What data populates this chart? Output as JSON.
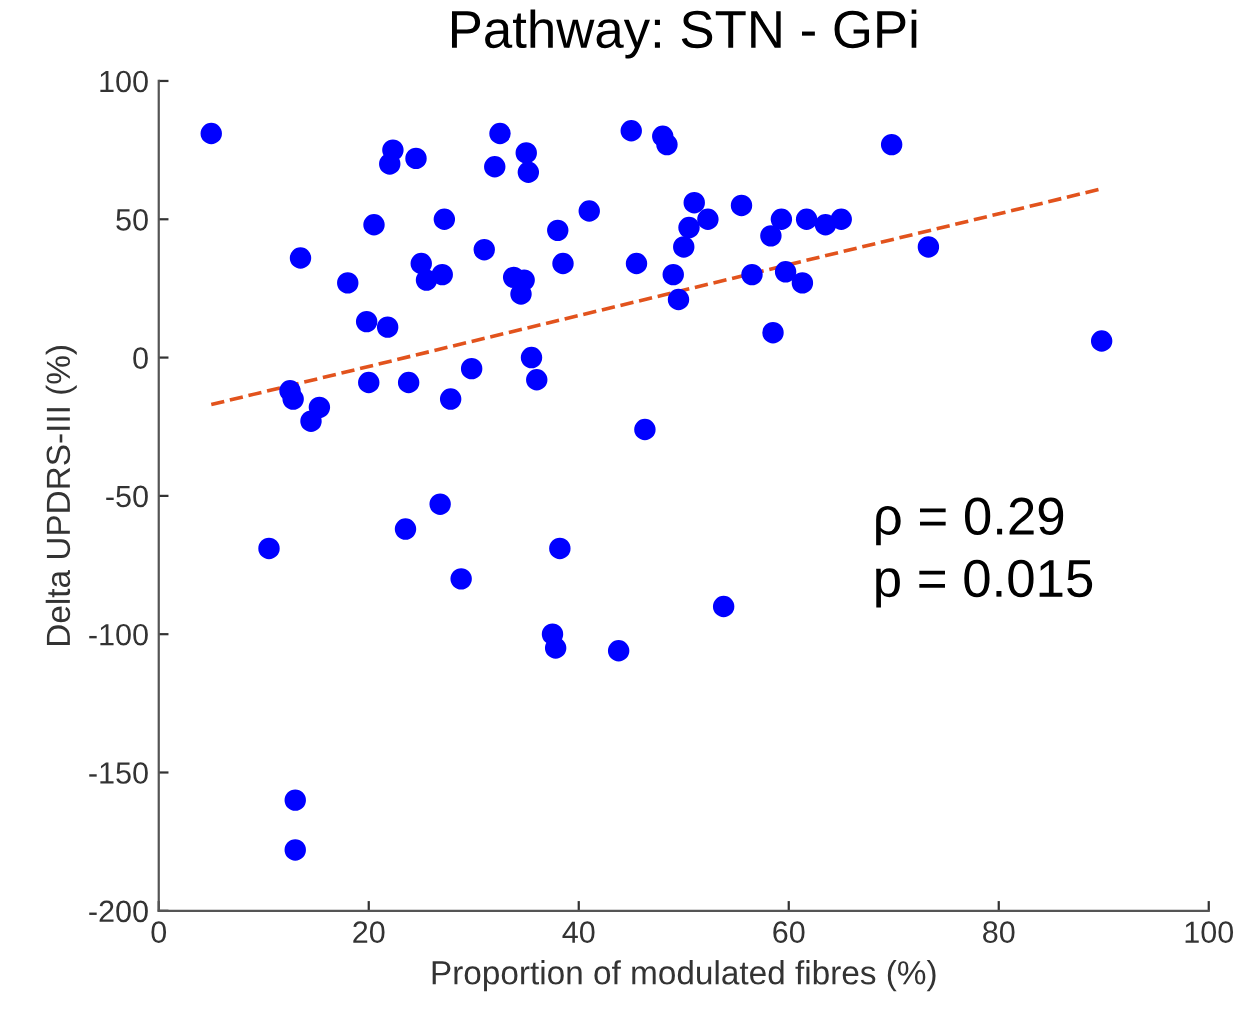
{
  "chart_data": {
    "type": "scatter",
    "title": "Pathway: STN - GPi",
    "xlabel": "Proportion of modulated fibres (%)",
    "ylabel": "Delta UPDRS-III (%)",
    "xlim": [
      0,
      100
    ],
    "ylim": [
      -200,
      100
    ],
    "xticks": [
      0,
      20,
      40,
      60,
      80,
      100
    ],
    "yticks": [
      -200,
      -150,
      -100,
      -50,
      0,
      50,
      100
    ],
    "grid": false,
    "legend": false,
    "marker": "circle",
    "series": [
      {
        "color": "#0000ff",
        "x": [
          5,
          10.5,
          12.5,
          12.8,
          13,
          13,
          13.5,
          14.5,
          15.3,
          18,
          19.8,
          20,
          20.5,
          21.8,
          22,
          22.3,
          23.5,
          23.8,
          24.5,
          25,
          25.5,
          26.8,
          27,
          27.2,
          27.8,
          28.8,
          29.8,
          31,
          32,
          32.5,
          33.8,
          34.5,
          34.8,
          35,
          35.2,
          35.5,
          36,
          37.5,
          37.8,
          38,
          38.2,
          38.5,
          41,
          43.8,
          45,
          45.5,
          46.3,
          48,
          48.4,
          49,
          49.5,
          50,
          50.5,
          51,
          52.3,
          53.8,
          55.5,
          56.5,
          58.3,
          58.5,
          59.3,
          59.7,
          61.3,
          61.7,
          63.5,
          65,
          69.8,
          73.3,
          89.8
        ],
        "values": [
          81,
          -69,
          -12,
          -15,
          -160,
          -178,
          36,
          -23,
          -18,
          27,
          13,
          -9,
          48,
          11,
          70,
          75,
          -62,
          -9,
          72,
          34,
          28,
          -53,
          30,
          50,
          -15,
          -80,
          -4,
          39,
          69,
          81,
          29,
          23,
          28,
          74,
          67,
          0,
          -8,
          -100,
          -105,
          46,
          -69,
          34,
          53,
          -106,
          82,
          34,
          -26,
          80,
          77,
          30,
          21,
          40,
          47,
          56,
          50,
          -90,
          55,
          30,
          44,
          9,
          50,
          31,
          27,
          50,
          48,
          50,
          77,
          40,
          6
        ]
      },
      {
        "type": "line",
        "color": "#e2531d",
        "line_style": "dashed",
        "marker": "none",
        "x": [
          5,
          89.8
        ],
        "values": [
          -17,
          61
        ]
      }
    ],
    "annotations": [
      "ρ = 0.29",
      "p = 0.015"
    ]
  }
}
